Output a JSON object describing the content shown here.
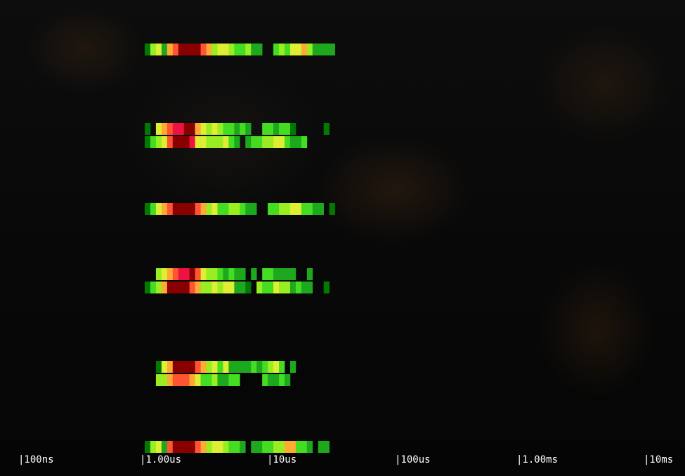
{
  "chart_data": {
    "type": "heatmap",
    "xscale": "log",
    "x_ticks": [
      "|100ns",
      "|1.00us",
      "|10us",
      "|100us",
      "|1.00ms",
      "|10ms"
    ],
    "x_tick_values_seconds": [
      1e-07,
      1e-06,
      1e-05,
      0.0001,
      0.001,
      0.01
    ],
    "bins_per_decade": 22,
    "color_scale": [
      "#007a00",
      "#1ea81e",
      "#44dd22",
      "#99ee22",
      "#ddee33",
      "#ffaa33",
      "#ff5533",
      "#ee1144",
      "#880000"
    ],
    "rows": [
      {
        "cells": [
          [
            0,
            3,
            4,
            1,
            5,
            6,
            8,
            8,
            8,
            8,
            6,
            5,
            3,
            4,
            4,
            3,
            2,
            2,
            3,
            1,
            1,
            -1,
            -1,
            2,
            3,
            2,
            4,
            4,
            5,
            3,
            1,
            1,
            1,
            1
          ]
        ]
      },
      {
        "cells": [
          [
            0,
            -1,
            4,
            5,
            6,
            7,
            7,
            8,
            8,
            5,
            4,
            3,
            4,
            3,
            2,
            2,
            1,
            2,
            1,
            -1,
            -1,
            2,
            2,
            1,
            2,
            2,
            0,
            -1,
            -1,
            -1,
            -1,
            -1,
            0
          ],
          [
            0,
            2,
            3,
            4,
            6,
            8,
            8,
            8,
            7,
            4,
            4,
            3,
            3,
            3,
            4,
            2,
            1,
            -1,
            1,
            2,
            2,
            3,
            3,
            4,
            4,
            2,
            1,
            1,
            2,
            -1,
            -1,
            -1,
            -1
          ]
        ]
      },
      {
        "cells": [
          [
            0,
            2,
            4,
            5,
            6,
            8,
            8,
            8,
            8,
            6,
            5,
            3,
            4,
            2,
            2,
            3,
            3,
            2,
            1,
            1,
            -1,
            -1,
            2,
            2,
            3,
            3,
            4,
            4,
            2,
            2,
            1,
            1,
            -1,
            0
          ]
        ]
      },
      {
        "cells": [
          [
            -1,
            -1,
            3,
            4,
            5,
            6,
            7,
            7,
            8,
            6,
            4,
            3,
            3,
            2,
            1,
            2,
            1,
            1,
            -1,
            1,
            -1,
            2,
            2,
            1,
            1,
            1,
            1,
            -1,
            -1,
            1,
            -1,
            -1,
            -1
          ],
          [
            0,
            2,
            3,
            5,
            8,
            8,
            8,
            8,
            6,
            5,
            3,
            3,
            4,
            3,
            4,
            4,
            1,
            1,
            0,
            -1,
            3,
            2,
            2,
            4,
            3,
            3,
            1,
            2,
            1,
            1,
            -1,
            -1,
            0
          ]
        ]
      },
      {
        "cells": [
          [
            -1,
            0,
            4,
            5,
            8,
            8,
            8,
            8,
            6,
            5,
            3,
            4,
            2,
            4,
            1,
            1,
            1,
            1,
            2,
            1,
            2,
            3,
            4,
            2,
            -1,
            1,
            -1,
            -1
          ],
          [
            -1,
            3,
            3,
            5,
            6,
            6,
            6,
            5,
            4,
            2,
            2,
            3,
            1,
            1,
            2,
            2,
            -1,
            -1,
            -1,
            -1,
            2,
            1,
            1,
            2,
            1,
            -1,
            -1,
            -1
          ]
        ]
      },
      {
        "cells": [
          [
            0,
            3,
            4,
            1,
            6,
            8,
            8,
            8,
            8,
            6,
            5,
            3,
            4,
            4,
            3,
            2,
            2,
            1,
            -1,
            1,
            1,
            2,
            2,
            3,
            3,
            5,
            5,
            2,
            2,
            1,
            -1,
            1,
            1
          ]
        ]
      }
    ]
  }
}
